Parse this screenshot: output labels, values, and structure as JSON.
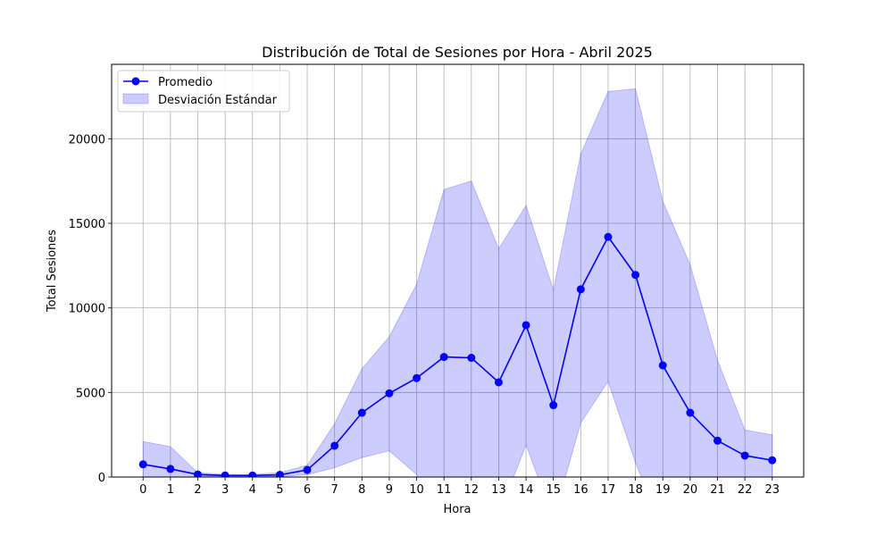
{
  "chart_data": {
    "type": "line",
    "title": "Distribución de Total de Sesiones por Hora - Abril 2025",
    "xlabel": "Hora",
    "ylabel": "Total Sesiones",
    "x": [
      0,
      1,
      2,
      3,
      4,
      5,
      6,
      7,
      8,
      9,
      10,
      11,
      12,
      13,
      14,
      15,
      16,
      17,
      18,
      19,
      20,
      21,
      22,
      23
    ],
    "xlim": [
      -1.15,
      24.15
    ],
    "ylim": [
      0,
      24400
    ],
    "yticks": [
      0,
      5000,
      10000,
      15000,
      20000
    ],
    "grid": true,
    "legend_position": "top-left",
    "series": [
      {
        "name": "Promedio",
        "color": "#0000ff",
        "marker": "circle",
        "values": [
          750,
          480,
          150,
          90,
          90,
          130,
          420,
          1850,
          3800,
          4950,
          5850,
          7100,
          7050,
          5600,
          8980,
          4250,
          11100,
          14200,
          11950,
          6600,
          3800,
          2150,
          1270,
          990
        ]
      }
    ],
    "band": {
      "name": "Desviación Estándar",
      "color": "#0000ff",
      "opacity": 0.2,
      "upper": [
        2100,
        1800,
        250,
        150,
        150,
        260,
        700,
        3150,
        6400,
        8300,
        11400,
        17000,
        17500,
        13500,
        16050,
        11050,
        19100,
        22800,
        22950,
        16300,
        12550,
        6900,
        2780,
        2500
      ],
      "lower": [
        -600,
        -800,
        50,
        40,
        30,
        20,
        140,
        550,
        1150,
        1550,
        150,
        -2800,
        -3400,
        -2300,
        1900,
        -2500,
        3200,
        5650,
        850,
        -3100,
        -4950,
        -2600,
        -240,
        -520
      ]
    }
  }
}
